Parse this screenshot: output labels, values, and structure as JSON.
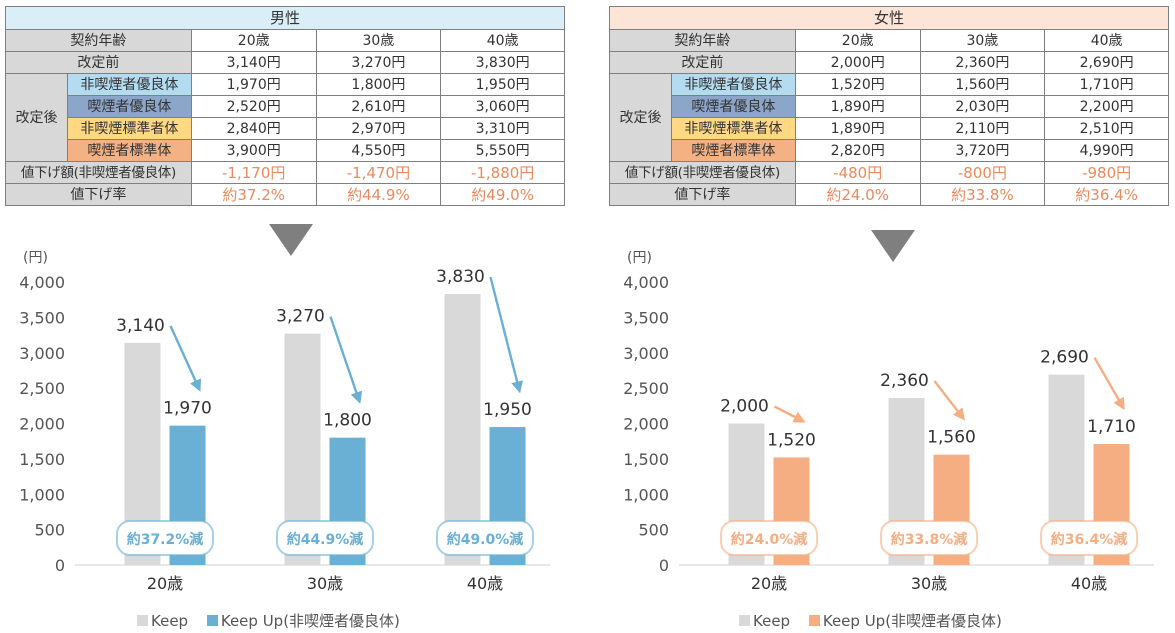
{
  "table_headers": {
    "age": "契約年齢",
    "before": "改定前",
    "after": "改定後",
    "reduction": "値下げ額(非喫煙者優良体)",
    "rate": "値下げ率"
  },
  "categories": [
    "非喫煙者優良体",
    "喫煙者優良体",
    "非喫煙標準者体",
    "喫煙者標準体"
  ],
  "age_labels": [
    "20歳",
    "30歳",
    "40歳"
  ],
  "male": {
    "title": "男性",
    "before": [
      "3,140円",
      "3,270円",
      "3,830円"
    ],
    "after": [
      [
        "1,970円",
        "1,800円",
        "1,950円"
      ],
      [
        "2,520円",
        "2,610円",
        "3,060円"
      ],
      [
        "2,840円",
        "2,970円",
        "3,310円"
      ],
      [
        "3,900円",
        "4,550円",
        "5,550円"
      ]
    ],
    "reduction": [
      "-1,170円",
      "-1,470円",
      "-1,880円"
    ],
    "rate": [
      "約37.2%",
      "約44.9%",
      "約49.0%"
    ]
  },
  "female": {
    "title": "女性",
    "before": [
      "2,000円",
      "2,360円",
      "2,690円"
    ],
    "after": [
      [
        "1,520円",
        "1,560円",
        "1,710円"
      ],
      [
        "1,890円",
        "2,030円",
        "2,200円"
      ],
      [
        "1,890円",
        "2,110円",
        "2,510円"
      ],
      [
        "2,820円",
        "3,720円",
        "4,990円"
      ]
    ],
    "reduction": [
      "-480円",
      "-800円",
      "-980円"
    ],
    "rate": [
      "約24.0%",
      "約33.8%",
      "約36.4%"
    ]
  },
  "colors": {
    "keep": "#d9d9d9",
    "male_accent": "#6ab0d4",
    "female_accent": "#f4ae82",
    "cat_colors": [
      "#b4dcf1",
      "#8ba6c9",
      "#ffd884",
      "#f4b183"
    ]
  },
  "chart_data": [
    {
      "type": "bar",
      "ylabel": "(円)",
      "ylim": [
        0,
        4000
      ],
      "yticks": [
        0,
        500,
        1000,
        1500,
        2000,
        2500,
        3000,
        3500,
        4000
      ],
      "ytick_labels": [
        "0",
        "500",
        "1,000",
        "1,500",
        "2,000",
        "2,500",
        "3,000",
        "3,500",
        "4,000"
      ],
      "categories": [
        "20歳",
        "30歳",
        "40歳"
      ],
      "series": [
        {
          "name": "Keep",
          "values": [
            3140,
            3270,
            3830
          ],
          "labels": [
            "3,140",
            "3,270",
            "3,830"
          ]
        },
        {
          "name": "Keep Up(非喫煙者優良体)",
          "values": [
            1970,
            1800,
            1950
          ],
          "labels": [
            "1,970",
            "1,800",
            "1,950"
          ]
        }
      ],
      "badges": [
        "約37.2%減",
        "約44.9%減",
        "約49.0%減"
      ],
      "accent": "#6ab0d4",
      "legend": "bottom"
    },
    {
      "type": "bar",
      "ylabel": "(円)",
      "ylim": [
        0,
        4000
      ],
      "yticks": [
        0,
        500,
        1000,
        1500,
        2000,
        2500,
        3000,
        3500,
        4000
      ],
      "ytick_labels": [
        "0",
        "500",
        "1,000",
        "1,500",
        "2,000",
        "2,500",
        "3,000",
        "3,500",
        "4,000"
      ],
      "categories": [
        "20歳",
        "30歳",
        "40歳"
      ],
      "series": [
        {
          "name": "Keep",
          "values": [
            2000,
            2360,
            2690
          ],
          "labels": [
            "2,000",
            "2,360",
            "2,690"
          ]
        },
        {
          "name": "Keep Up(非喫煙者優良体)",
          "values": [
            1520,
            1560,
            1710
          ],
          "labels": [
            "1,520",
            "1,560",
            "1,710"
          ]
        }
      ],
      "badges": [
        "約24.0%減",
        "約33.8%減",
        "約36.4%減"
      ],
      "accent": "#f4ae82",
      "legend": "bottom"
    }
  ]
}
